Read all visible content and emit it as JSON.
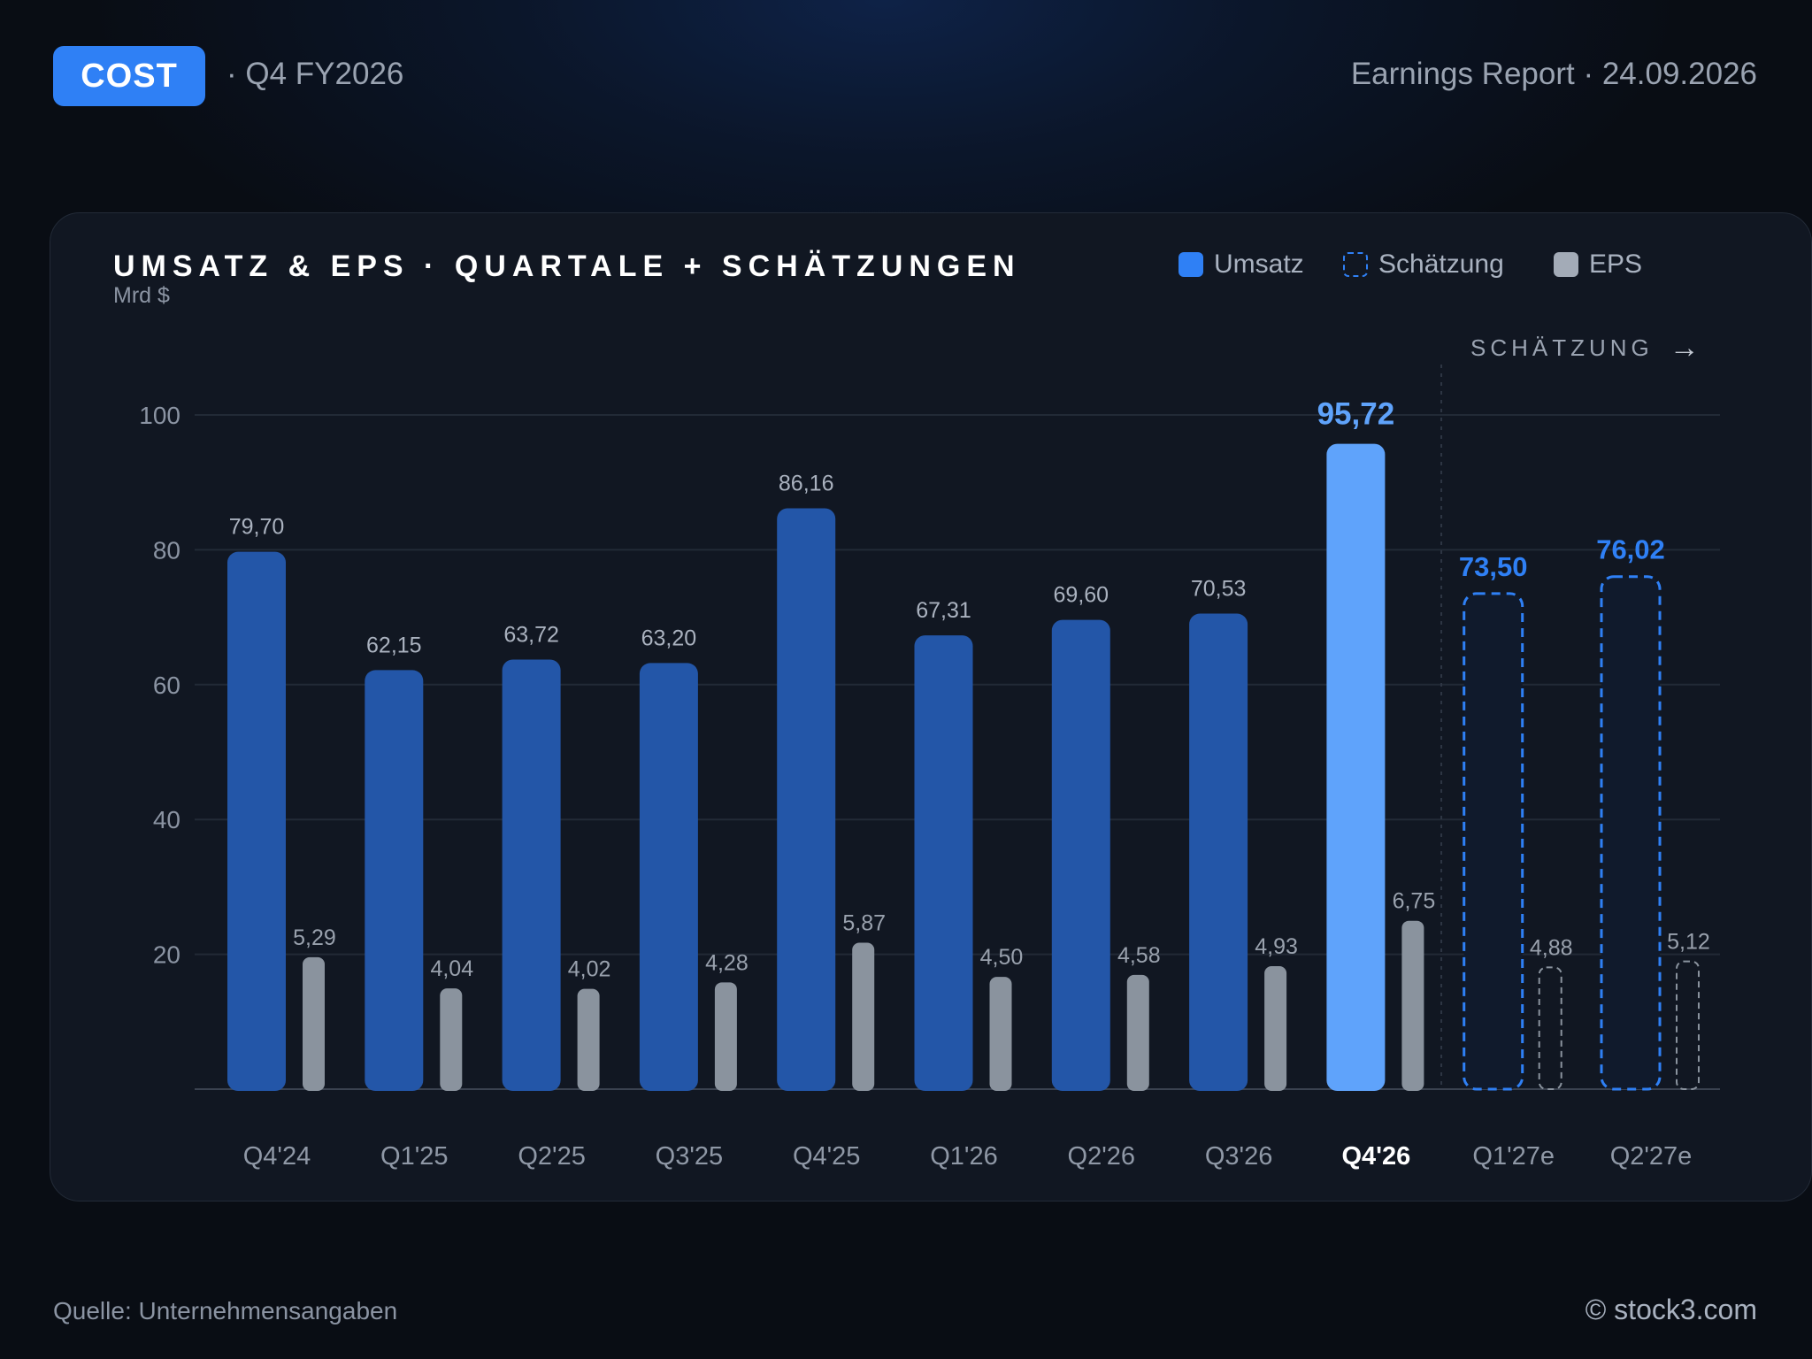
{
  "header": {
    "ticker": "COST",
    "period": "· Q4 FY2026",
    "report": "Earnings Report · 24.09.2026"
  },
  "legend": {
    "revenue": "Umsatz",
    "estimate": "Schätzung",
    "eps": "EPS"
  },
  "estimate_marker": "SCHÄTZUNG",
  "colors": {
    "revenue": "#2356a8",
    "highlight": "#5fa3fb",
    "estimate_border": "#2f80f5",
    "eps": "#8a939e",
    "accent": "#2f80f5"
  },
  "chart_data": {
    "type": "bar",
    "title": "UMSATZ & EPS · QUARTALE + SCHÄTZUNGEN",
    "unit": "Mrd $",
    "categories": [
      "Q4'24",
      "Q1'25",
      "Q2'25",
      "Q3'25",
      "Q4'25",
      "Q1'26",
      "Q2'26",
      "Q3'26",
      "Q4'26",
      "Q1'27e",
      "Q2'27e"
    ],
    "highlight_category": "Q4'26",
    "estimate_categories": [
      "Q1'27e",
      "Q2'27e"
    ],
    "yticks": [
      "20",
      "40",
      "60",
      "80",
      "100"
    ],
    "ylim": [
      0,
      100
    ],
    "series": [
      {
        "name": "Umsatz",
        "values": [
          79.7,
          62.15,
          63.72,
          63.2,
          86.16,
          67.31,
          69.6,
          70.53,
          95.72,
          73.5,
          76.02
        ],
        "labels": [
          "79,70",
          "62,15",
          "63,72",
          "63,20",
          "86,16",
          "67,31",
          "69,60",
          "70,53",
          "95,72",
          "73,50",
          "76,02"
        ]
      },
      {
        "name": "EPS",
        "values": [
          5.29,
          4.04,
          4.02,
          4.28,
          5.87,
          4.5,
          4.58,
          4.93,
          6.75,
          4.88,
          5.12
        ],
        "labels": [
          "5,29",
          "4,04",
          "4,02",
          "4,28",
          "5,87",
          "4,50",
          "4,58",
          "4,93",
          "6,75",
          "4,88",
          "5,12"
        ]
      }
    ],
    "legend_position": "top-right",
    "grid": true
  },
  "footer": {
    "source": "Quelle: Unternehmensangaben",
    "copyright": "© stock3.com"
  }
}
